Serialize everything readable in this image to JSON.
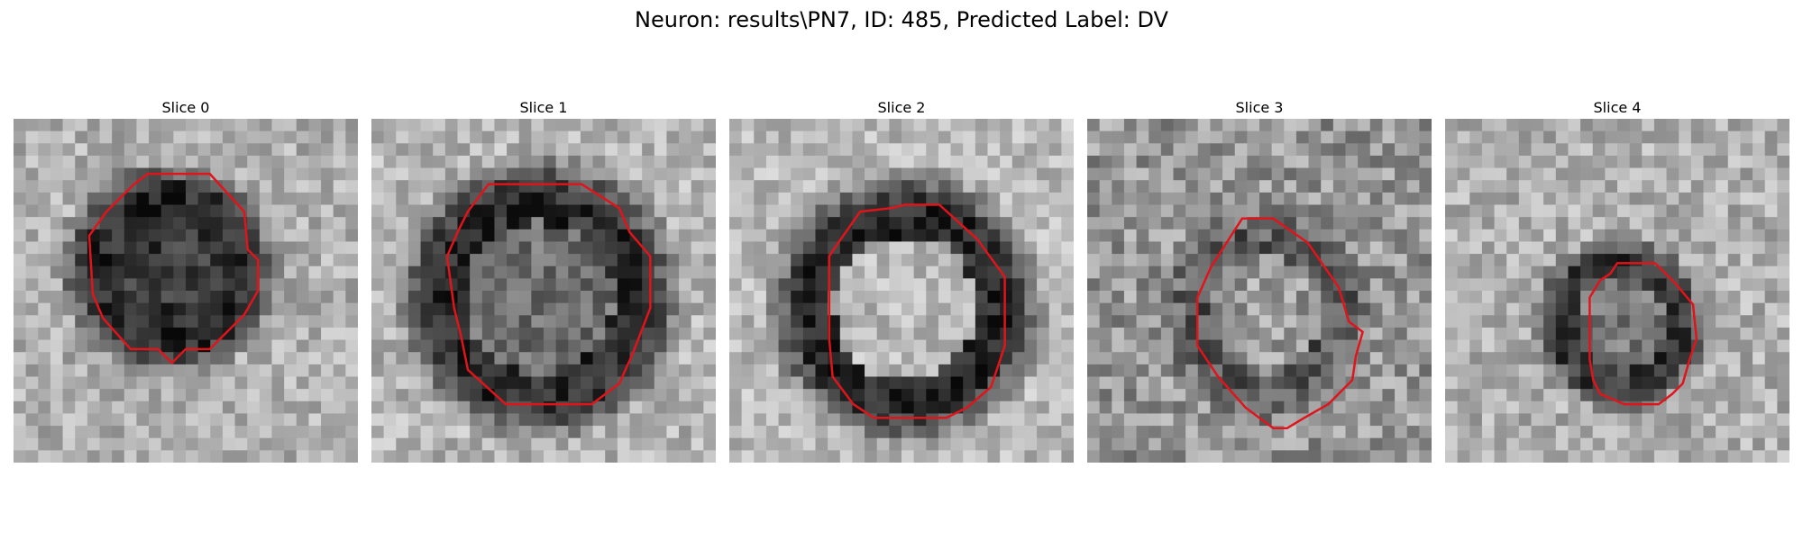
{
  "figure": {
    "suptitle": "Neuron: results\\PN7, ID: 485, Predicted Label: DV",
    "contour_color": "#e0141b",
    "colormap": "gray",
    "panels": [
      {
        "title": "Slice 0"
      },
      {
        "title": "Slice 1"
      },
      {
        "title": "Slice 2"
      },
      {
        "title": "Slice 3"
      },
      {
        "title": "Slice 4"
      }
    ]
  }
}
